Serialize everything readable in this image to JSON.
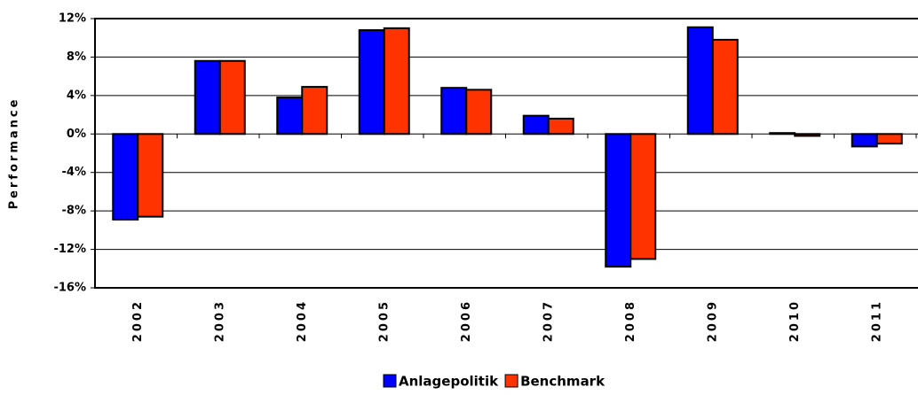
{
  "chart_data": {
    "type": "bar",
    "y_label": "Performance",
    "categories": [
      "2002",
      "2003",
      "2004",
      "2005",
      "2006",
      "2007",
      "2008",
      "2009",
      "2010",
      "2011"
    ],
    "series": [
      {
        "name": "Anlagepolitik",
        "color": "#0000ff",
        "values": [
          -8.9,
          7.6,
          3.8,
          10.8,
          4.8,
          1.9,
          -13.8,
          11.1,
          0.1,
          -1.3
        ]
      },
      {
        "name": "Benchmark",
        "color": "#ff3300",
        "values": [
          -8.6,
          7.6,
          4.9,
          11.0,
          4.6,
          1.6,
          -13.0,
          9.8,
          -0.2,
          -1.0
        ]
      }
    ],
    "ylim": [
      -16,
      12
    ],
    "yticks": [
      {
        "value": -16,
        "label": "-16%"
      },
      {
        "value": -12,
        "label": "-12%"
      },
      {
        "value": -8,
        "label": "-8%"
      },
      {
        "value": -4,
        "label": "-4%"
      },
      {
        "value": 0,
        "label": "0%"
      },
      {
        "value": 4,
        "label": "4%"
      },
      {
        "value": 8,
        "label": "8%"
      },
      {
        "value": 12,
        "label": "12%"
      }
    ],
    "grid": true
  }
}
